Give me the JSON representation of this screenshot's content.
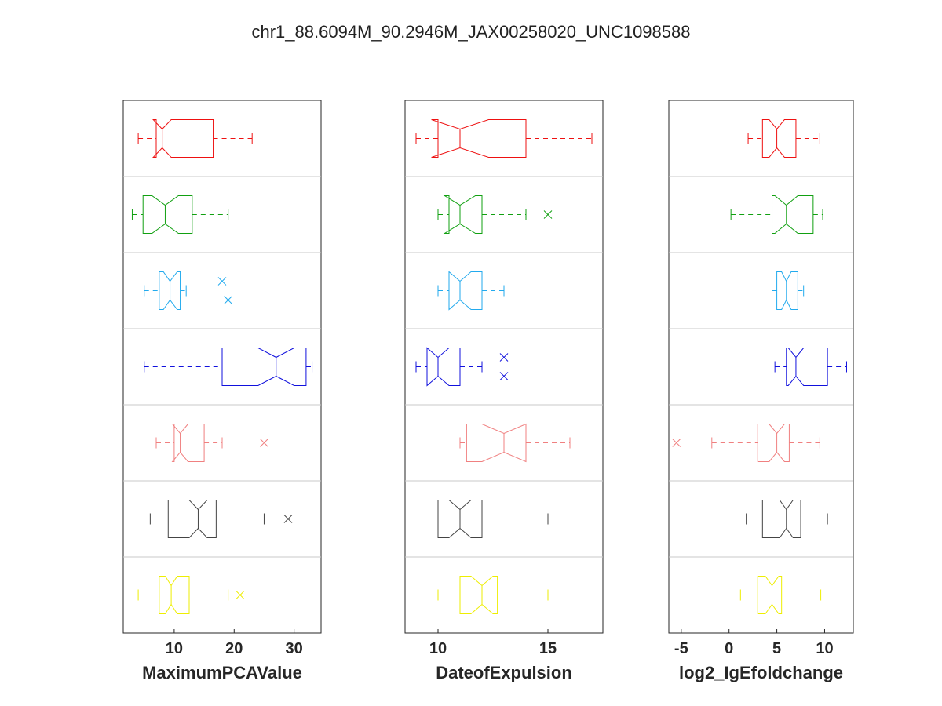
{
  "title": "chr1_88.6094M_90.2946M_JAX00258020_UNC1098588",
  "colors": [
    "#ee1111",
    "#11a011",
    "#22aaee",
    "#1111dd",
    "#f08080",
    "#444444",
    "#eeee00"
  ],
  "chart_data": [
    {
      "type": "boxplot",
      "orientation": "horizontal",
      "notched": true,
      "xlabel": "MaximumPCAValue",
      "xlim": [
        1.5,
        34.5
      ],
      "xticks": [
        10,
        20,
        30
      ],
      "boxes": [
        {
          "whisker_low": 4,
          "q1": 7,
          "median": 8,
          "q3": 16.5,
          "whisker_high": 23,
          "notch_low": 6.5,
          "notch_high": 9.5,
          "outliers": []
        },
        {
          "whisker_low": 3,
          "q1": 4.8,
          "median": 8.5,
          "q3": 13,
          "whisker_high": 19,
          "notch_low": 6.3,
          "notch_high": 10.7,
          "outliers": []
        },
        {
          "whisker_low": 5,
          "q1": 7.5,
          "median": 9.3,
          "q3": 11,
          "whisker_high": 12,
          "notch_low": 8.2,
          "notch_high": 10.5,
          "outliers": [
            18,
            19
          ]
        },
        {
          "whisker_low": 5,
          "q1": 18,
          "median": 27,
          "q3": 32,
          "whisker_high": 33,
          "notch_low": 24,
          "notch_high": 30,
          "outliers": []
        },
        {
          "whisker_low": 7,
          "q1": 10,
          "median": 11,
          "q3": 15,
          "whisker_high": 18,
          "notch_low": 9.7,
          "notch_high": 12.3,
          "outliers": [
            25
          ]
        },
        {
          "whisker_low": 6,
          "q1": 9,
          "median": 14,
          "q3": 17,
          "whisker_high": 25,
          "notch_low": 12.5,
          "notch_high": 15.5,
          "outliers": [
            29
          ]
        },
        {
          "whisker_low": 4,
          "q1": 7.5,
          "median": 9.5,
          "q3": 12.5,
          "whisker_high": 19,
          "notch_low": 8.5,
          "notch_high": 10.5,
          "outliers": [
            21
          ]
        }
      ]
    },
    {
      "type": "boxplot",
      "orientation": "horizontal",
      "notched": true,
      "xlabel": "DateofExpulsion",
      "xlim": [
        8.5,
        17.5
      ],
      "xticks": [
        10,
        15
      ],
      "boxes": [
        {
          "whisker_low": 9,
          "q1": 10,
          "median": 11,
          "q3": 14,
          "whisker_high": 17,
          "notch_low": 9.7,
          "notch_high": 12.3,
          "outliers": []
        },
        {
          "whisker_low": 10,
          "q1": 10.5,
          "median": 11,
          "q3": 12,
          "whisker_high": 14,
          "notch_low": 10.3,
          "notch_high": 11.7,
          "outliers": [
            15
          ]
        },
        {
          "whisker_low": 10,
          "q1": 10.5,
          "median": 11,
          "q3": 12,
          "whisker_high": 13,
          "notch_low": 10.5,
          "notch_high": 11.5,
          "outliers": []
        },
        {
          "whisker_low": 9,
          "q1": 9.5,
          "median": 10,
          "q3": 11,
          "whisker_high": 12,
          "notch_low": 9.5,
          "notch_high": 10.5,
          "outliers": [
            13,
            13
          ]
        },
        {
          "whisker_low": 11,
          "q1": 11.3,
          "median": 13,
          "q3": 14,
          "whisker_high": 16,
          "notch_low": 12,
          "notch_high": 14,
          "outliers": []
        },
        {
          "whisker_low": 10,
          "q1": 10,
          "median": 11,
          "q3": 12,
          "whisker_high": 15,
          "notch_low": 10.5,
          "notch_high": 11.5,
          "outliers": []
        },
        {
          "whisker_low": 10,
          "q1": 11,
          "median": 12,
          "q3": 12.7,
          "whisker_high": 15,
          "notch_low": 11.5,
          "notch_high": 12.5,
          "outliers": []
        }
      ]
    },
    {
      "type": "boxplot",
      "orientation": "horizontal",
      "notched": true,
      "xlabel": "log2_IgEfoldchange",
      "xlim": [
        -6.3,
        13
      ],
      "xticks": [
        -5,
        0,
        5,
        10
      ],
      "boxes": [
        {
          "whisker_low": 2,
          "q1": 3.5,
          "median": 5,
          "q3": 7,
          "whisker_high": 9.5,
          "notch_low": 4.2,
          "notch_high": 5.8,
          "outliers": []
        },
        {
          "whisker_low": 0.2,
          "q1": 4.5,
          "median": 6,
          "q3": 8.8,
          "whisker_high": 9.8,
          "notch_low": 4.8,
          "notch_high": 7.2,
          "outliers": []
        },
        {
          "whisker_low": 4.5,
          "q1": 5,
          "median": 6,
          "q3": 7.2,
          "whisker_high": 7.8,
          "notch_low": 5.5,
          "notch_high": 6.5,
          "outliers": []
        },
        {
          "whisker_low": 4.8,
          "q1": 6,
          "median": 7,
          "q3": 10.3,
          "whisker_high": 12.3,
          "notch_low": 6.2,
          "notch_high": 7.8,
          "outliers": []
        },
        {
          "whisker_low": -1.8,
          "q1": 3,
          "median": 5,
          "q3": 6.3,
          "whisker_high": 9.5,
          "notch_low": 4.2,
          "notch_high": 5.8,
          "outliers": [
            -5.5
          ]
        },
        {
          "whisker_low": 1.8,
          "q1": 3.5,
          "median": 6,
          "q3": 7.5,
          "whisker_high": 10.3,
          "notch_low": 5.3,
          "notch_high": 6.7,
          "outliers": []
        },
        {
          "whisker_low": 1.2,
          "q1": 3,
          "median": 4.5,
          "q3": 5.5,
          "whisker_high": 9.6,
          "notch_low": 3.8,
          "notch_high": 5.2,
          "outliers": []
        }
      ]
    }
  ]
}
